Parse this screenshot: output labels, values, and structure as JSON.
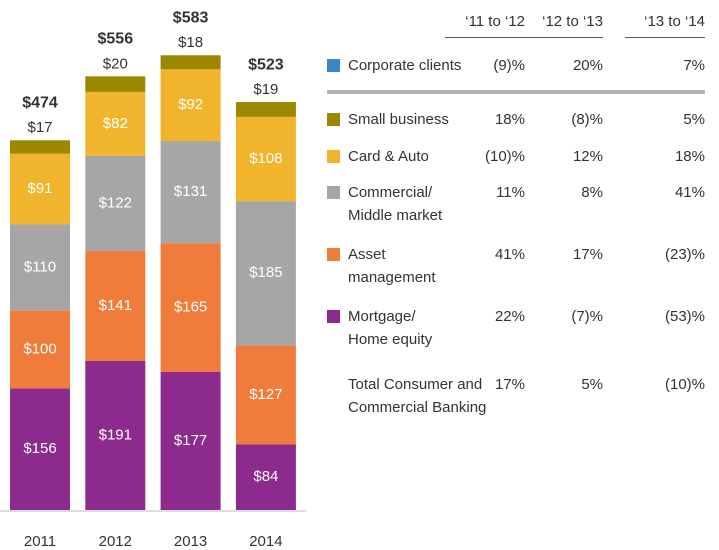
{
  "chart_data": {
    "type": "stacked_bar",
    "categories": [
      "2011",
      "2012",
      "2013",
      "2014"
    ],
    "growth_columns": [
      "‘11 to ‘12",
      "‘12 to ‘13",
      "‘13 to ‘14"
    ],
    "series": [
      {
        "name": "Corporate clients",
        "color": "#3b86c6",
        "values": [
          null,
          null,
          null,
          null
        ],
        "growth": [
          "(9)%",
          "20%",
          "7%"
        ]
      },
      {
        "name": "Small business",
        "color": "#9c8800",
        "values": [
          17,
          20,
          18,
          19
        ],
        "value_labels": [
          "$17",
          "$20",
          "$18",
          "$19"
        ],
        "growth": [
          "18%",
          "(8)%",
          "5%"
        ]
      },
      {
        "name": "Card & Auto",
        "color": "#f0b42d",
        "values": [
          91,
          82,
          92,
          108
        ],
        "value_labels": [
          "$91",
          "$82",
          "$92",
          "$108"
        ],
        "growth": [
          "(10)%",
          "12%",
          "18%"
        ]
      },
      {
        "name": "Commercial/\nMiddle market",
        "color": "#a6a6a6",
        "values": [
          110,
          122,
          131,
          185
        ],
        "value_labels": [
          "$110",
          "$122",
          "$131",
          "$185"
        ],
        "growth": [
          "11%",
          "8%",
          "41%"
        ]
      },
      {
        "name": "Asset\nmanagement",
        "color": "#f07c3b",
        "values": [
          100,
          141,
          165,
          127
        ],
        "value_labels": [
          "$100",
          "$141",
          "$165",
          "$127"
        ],
        "growth": [
          "41%",
          "17%",
          "(23)%"
        ]
      },
      {
        "name": "Mortgage/\nHome equity",
        "color": "#8c2a8e",
        "values": [
          156,
          191,
          177,
          84
        ],
        "value_labels": [
          "$156",
          "$191",
          "$177",
          "$84"
        ],
        "growth": [
          "22%",
          "(7)%",
          "(53)%"
        ]
      }
    ],
    "total": {
      "name": "Total Consumer and\nCommercial Banking",
      "values": [
        474,
        556,
        583,
        523
      ],
      "value_labels": [
        "$474",
        "$556",
        "$583",
        "$523"
      ],
      "growth": [
        "17%",
        "5%",
        "(10)%"
      ]
    }
  }
}
